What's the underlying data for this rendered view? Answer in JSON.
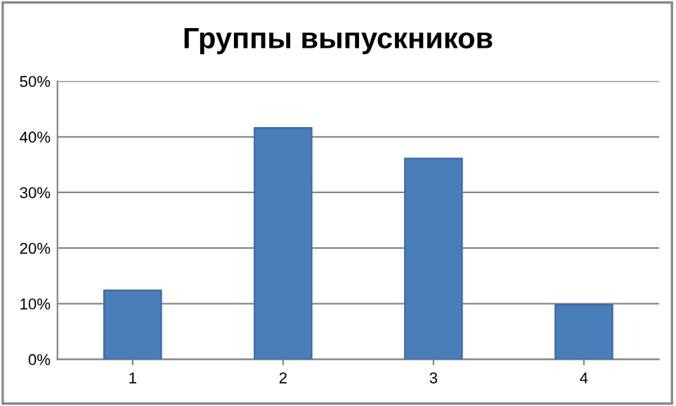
{
  "chart_data": {
    "type": "bar",
    "title": "Группы выпускников",
    "categories": [
      "1",
      "2",
      "3",
      "4"
    ],
    "values": [
      12.4,
      41.6,
      36.1,
      9.8
    ],
    "color": "#4a7ebb",
    "ylim": [
      0,
      50
    ],
    "yticks": [
      {
        "value": 0,
        "label": "0%"
      },
      {
        "value": 10,
        "label": "10%"
      },
      {
        "value": 20,
        "label": "20%"
      },
      {
        "value": 30,
        "label": "30%"
      },
      {
        "value": 40,
        "label": "40%"
      },
      {
        "value": 50,
        "label": "50%"
      }
    ],
    "grid": "y",
    "legend": false
  }
}
